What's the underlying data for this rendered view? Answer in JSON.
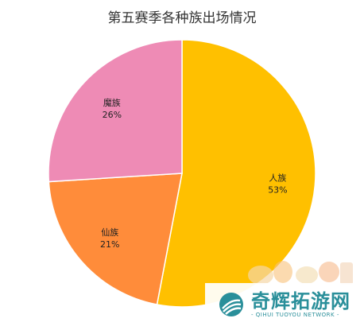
{
  "chart_data": {
    "type": "pie",
    "title": "第五赛季各种族出场情况",
    "slices": [
      {
        "name": "人族",
        "value": 53,
        "label": "53%",
        "color": "#FFC000"
      },
      {
        "name": "仙族",
        "value": 21,
        "label": "21%",
        "color": "#FF8C3A"
      },
      {
        "name": "魔族",
        "value": 26,
        "label": "26%",
        "color": "#EE8BB5"
      }
    ]
  },
  "watermark": {
    "name_cn": "奇辉拓游网",
    "name_en": "- QIHUI TUOYOU NETWORK -"
  }
}
